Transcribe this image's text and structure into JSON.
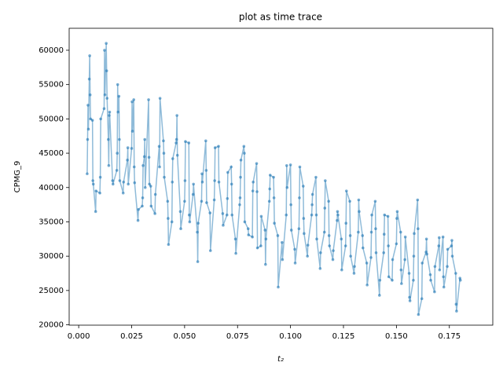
{
  "chart_data": {
    "type": "line",
    "title": "plot as time trace",
    "xlabel": "t₂",
    "ylabel": "CPMG_9",
    "color": "#1f77b4",
    "xlim": [
      -0.0045,
      0.1955
    ],
    "ylim": [
      19950,
      63200
    ],
    "xticks": [
      {
        "value": 0,
        "label": "0.000"
      },
      {
        "value": 0.025,
        "label": "0.025"
      },
      {
        "value": 0.05,
        "label": "0.050"
      },
      {
        "value": 0.075,
        "label": "0.075"
      },
      {
        "value": 0.1,
        "label": "0.100"
      },
      {
        "value": 0.125,
        "label": "0.125"
      },
      {
        "value": 0.15,
        "label": "0.150"
      },
      {
        "value": 0.175,
        "label": "0.175"
      }
    ],
    "yticks": [
      20000,
      25000,
      30000,
      35000,
      40000,
      45000,
      50000,
      55000,
      60000
    ],
    "x": [
      0.004,
      0.0042,
      0.0044,
      0.0046,
      0.005,
      0.0052,
      0.0054,
      0.0056,
      0.0065,
      0.0067,
      0.0069,
      0.008,
      0.0082,
      0.01,
      0.0102,
      0.0104,
      0.012,
      0.0122,
      0.0124,
      0.013,
      0.0132,
      0.0134,
      0.014,
      0.0142,
      0.0144,
      0.0146,
      0.016,
      0.0162,
      0.018,
      0.0182,
      0.0184,
      0.0186,
      0.019,
      0.0192,
      0.0194,
      0.021,
      0.0212,
      0.023,
      0.0232,
      0.0234,
      0.025,
      0.0252,
      0.0254,
      0.026,
      0.0262,
      0.0264,
      0.028,
      0.0282,
      0.03,
      0.0302,
      0.0304,
      0.031,
      0.0312,
      0.0314,
      0.033,
      0.0332,
      0.0334,
      0.034,
      0.0342,
      0.036,
      0.0362,
      0.038,
      0.0382,
      0.0384,
      0.04,
      0.0402,
      0.0404,
      0.042,
      0.0422,
      0.0424,
      0.044,
      0.0442,
      0.0444,
      0.046,
      0.0462,
      0.0464,
      0.0466,
      0.048,
      0.0482,
      0.05,
      0.0502,
      0.0504,
      0.052,
      0.0522,
      0.0524,
      0.054,
      0.0542,
      0.056,
      0.0562,
      0.0564,
      0.058,
      0.0582,
      0.0584,
      0.06,
      0.0602,
      0.0604,
      0.062,
      0.0622,
      0.064,
      0.0642,
      0.0644,
      0.066,
      0.0662,
      0.068,
      0.0682,
      0.07,
      0.0702,
      0.0704,
      0.072,
      0.0722,
      0.0724,
      0.074,
      0.0742,
      0.076,
      0.0762,
      0.0764,
      0.0766,
      0.078,
      0.0782,
      0.0784,
      0.08,
      0.0802,
      0.082,
      0.0822,
      0.0824,
      0.084,
      0.0842,
      0.0844,
      0.086,
      0.0862,
      0.088,
      0.0882,
      0.0884,
      0.09,
      0.0902,
      0.0904,
      0.092,
      0.0922,
      0.0924,
      0.094,
      0.0942,
      0.096,
      0.0962,
      0.098,
      0.0982,
      0.0984,
      0.1,
      0.1002,
      0.1004,
      0.102,
      0.1022,
      0.104,
      0.1042,
      0.1044,
      0.106,
      0.1062,
      0.1064,
      0.108,
      0.1082,
      0.11,
      0.1102,
      0.1104,
      0.112,
      0.1122,
      0.1124,
      0.114,
      0.1142,
      0.116,
      0.1162,
      0.1164,
      0.118,
      0.1182,
      0.1184,
      0.12,
      0.1202,
      0.122,
      0.1222,
      0.1224,
      0.124,
      0.1242,
      0.126,
      0.1262,
      0.1264,
      0.128,
      0.1282,
      0.1284,
      0.13,
      0.1302,
      0.132,
      0.1322,
      0.1324,
      0.134,
      0.1342,
      0.136,
      0.1362,
      0.138,
      0.1382,
      0.1384,
      0.14,
      0.1402,
      0.1404,
      0.142,
      0.1422,
      0.144,
      0.1442,
      0.1444,
      0.146,
      0.1462,
      0.1464,
      0.148,
      0.1482,
      0.15,
      0.1502,
      0.1504,
      0.152,
      0.1522,
      0.1524,
      0.154,
      0.1542,
      0.156,
      0.1562,
      0.1564,
      0.158,
      0.1582,
      0.1584,
      0.16,
      0.1602,
      0.1604,
      0.162,
      0.1622,
      0.164,
      0.1642,
      0.1644,
      0.166,
      0.1662,
      0.168,
      0.1682,
      0.17,
      0.1702,
      0.1704,
      0.172,
      0.1722,
      0.1724,
      0.174,
      0.1742,
      0.176,
      0.1762,
      0.1764,
      0.178,
      0.1782,
      0.1784,
      0.18,
      0.1802
    ],
    "values": [
      42000,
      47000,
      52000,
      48500,
      55800,
      59200,
      53500,
      50000,
      49800,
      41000,
      40500,
      36500,
      39500,
      39200,
      41500,
      50000,
      51500,
      60000,
      53500,
      61000,
      57000,
      53000,
      47000,
      43200,
      50500,
      51000,
      41000,
      40500,
      42500,
      45000,
      55000,
      51000,
      53300,
      47000,
      41000,
      39200,
      40800,
      44000,
      45800,
      40500,
      45700,
      52500,
      48200,
      52800,
      43000,
      40700,
      35200,
      36800,
      37300,
      38500,
      43200,
      44500,
      47000,
      40000,
      52800,
      44400,
      40500,
      40200,
      37300,
      36200,
      39000,
      46000,
      43000,
      53000,
      46800,
      45000,
      41500,
      38000,
      35500,
      31700,
      35000,
      40800,
      44200,
      46500,
      47000,
      50500,
      44700,
      36500,
      34000,
      38000,
      41000,
      46700,
      46500,
      36000,
      35000,
      39000,
      40500,
      33500,
      29200,
      34800,
      38000,
      42000,
      40800,
      46800,
      42500,
      37800,
      36300,
      30800,
      38200,
      41000,
      45800,
      46000,
      40800,
      36200,
      34500,
      36000,
      38400,
      42200,
      43000,
      40500,
      36000,
      32500,
      30400,
      37500,
      38500,
      41500,
      44000,
      46000,
      45000,
      35000,
      34000,
      33100,
      32800,
      39500,
      40800,
      43500,
      39400,
      31200,
      31500,
      35800,
      33800,
      28800,
      32500,
      38000,
      39800,
      41800,
      41500,
      38500,
      34800,
      33000,
      25500,
      32000,
      29500,
      36000,
      43200,
      40000,
      43300,
      37500,
      33800,
      31000,
      29000,
      34000,
      38500,
      43000,
      40200,
      35500,
      33300,
      30000,
      31600,
      36000,
      37500,
      39000,
      41500,
      36000,
      32500,
      28200,
      30500,
      33500,
      37000,
      41000,
      38000,
      33000,
      31500,
      29500,
      30800,
      35200,
      36500,
      36000,
      32500,
      28000,
      31500,
      34800,
      39500,
      38000,
      33000,
      30000,
      27500,
      28500,
      33500,
      38200,
      36500,
      33000,
      31200,
      29000,
      25800,
      29800,
      33500,
      36000,
      38000,
      34000,
      30500,
      24300,
      26500,
      30500,
      33200,
      36000,
      35800,
      31500,
      27000,
      26500,
      29500,
      31800,
      35500,
      36500,
      33500,
      28000,
      26000,
      29500,
      32800,
      27500,
      24000,
      23500,
      26500,
      30000,
      33300,
      38200,
      34000,
      21500,
      23800,
      29000,
      30600,
      32500,
      30300,
      27300,
      26500,
      24800,
      28500,
      31500,
      32700,
      28000,
      32800,
      27000,
      25500,
      28500,
      31000,
      31500,
      32300,
      30000,
      27500,
      23000,
      22000,
      26800,
      26500
    ]
  }
}
